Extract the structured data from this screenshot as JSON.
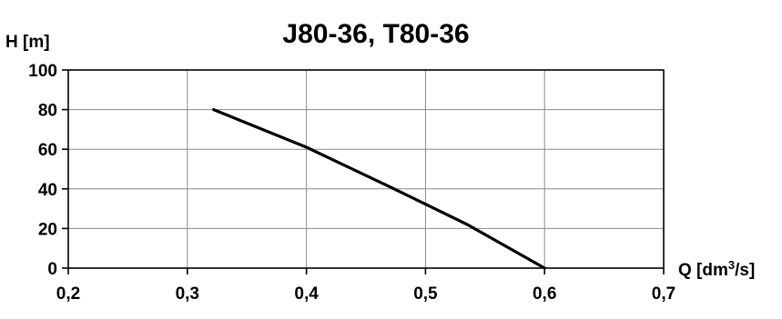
{
  "chart_data": {
    "type": "line",
    "title": "J80-36, T80-36",
    "ylabel": "H [m]",
    "xlabel": "Q [dm",
    "xlabel_sup": "3",
    "xlabel_suffix": "/s]",
    "xlim": [
      0.2,
      0.7
    ],
    "ylim": [
      0,
      100
    ],
    "xticks": [
      0.2,
      0.3,
      0.4,
      0.5,
      0.6,
      0.7
    ],
    "xtick_labels": [
      "0,2",
      "0,3",
      "0,4",
      "0,5",
      "0,6",
      "0,7"
    ],
    "yticks": [
      0,
      20,
      40,
      60,
      80,
      100
    ],
    "ytick_labels": [
      "0",
      "20",
      "40",
      "60",
      "80",
      "100"
    ],
    "grid": true,
    "series": [
      {
        "color": "#000000",
        "x": [
          0.322,
          0.4,
          0.47,
          0.535,
          0.6
        ],
        "y": [
          80,
          61,
          41,
          22,
          0
        ]
      }
    ]
  }
}
